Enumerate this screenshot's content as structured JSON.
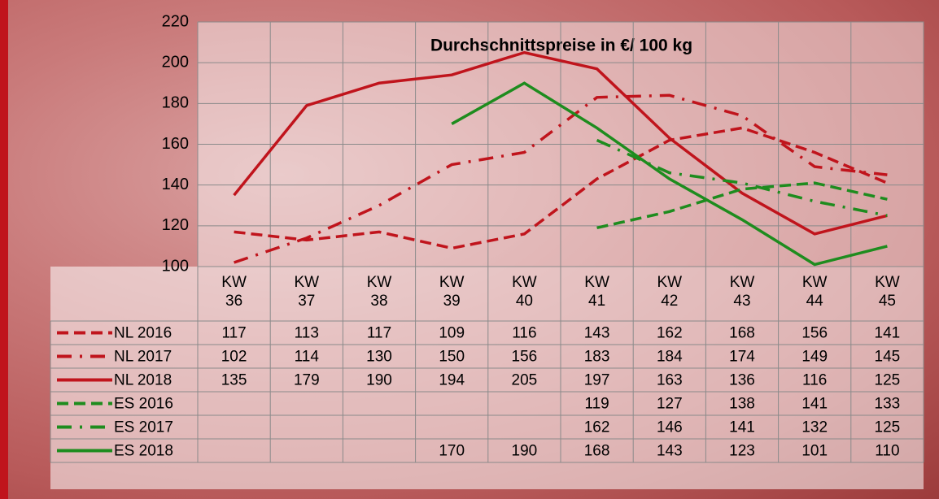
{
  "chart_data": {
    "type": "line",
    "title": "Durchschnittspreise in €/ 100 kg",
    "categories": [
      "KW 36",
      "KW 37",
      "KW 38",
      "KW 39",
      "KW 40",
      "KW 41",
      "KW 42",
      "KW 43",
      "KW 44",
      "KW 45"
    ],
    "series": [
      {
        "name": "NL 2016",
        "color": "#c0141c",
        "style": "dashed",
        "values": [
          117,
          113,
          117,
          109,
          116,
          143,
          162,
          168,
          156,
          141
        ]
      },
      {
        "name": "NL 2017",
        "color": "#c0141c",
        "style": "dashdot",
        "values": [
          102,
          114,
          130,
          150,
          156,
          183,
          184,
          174,
          149,
          145
        ]
      },
      {
        "name": "NL 2018",
        "color": "#c0141c",
        "style": "solid",
        "values": [
          135,
          179,
          190,
          194,
          205,
          197,
          163,
          136,
          116,
          125
        ]
      },
      {
        "name": "ES 2016",
        "color": "#1e8c1e",
        "style": "dashed",
        "values": [
          null,
          null,
          null,
          null,
          null,
          119,
          127,
          138,
          141,
          133
        ]
      },
      {
        "name": "ES 2017",
        "color": "#1e8c1e",
        "style": "dashdot",
        "values": [
          null,
          null,
          null,
          null,
          null,
          162,
          146,
          141,
          132,
          125
        ]
      },
      {
        "name": "ES 2018",
        "color": "#1e8c1e",
        "style": "solid",
        "values": [
          null,
          null,
          null,
          170,
          190,
          168,
          143,
          123,
          101,
          110
        ]
      }
    ],
    "ylim": [
      100,
      220
    ],
    "yticks": [
      100,
      120,
      140,
      160,
      180,
      200,
      220
    ],
    "grid": true
  }
}
